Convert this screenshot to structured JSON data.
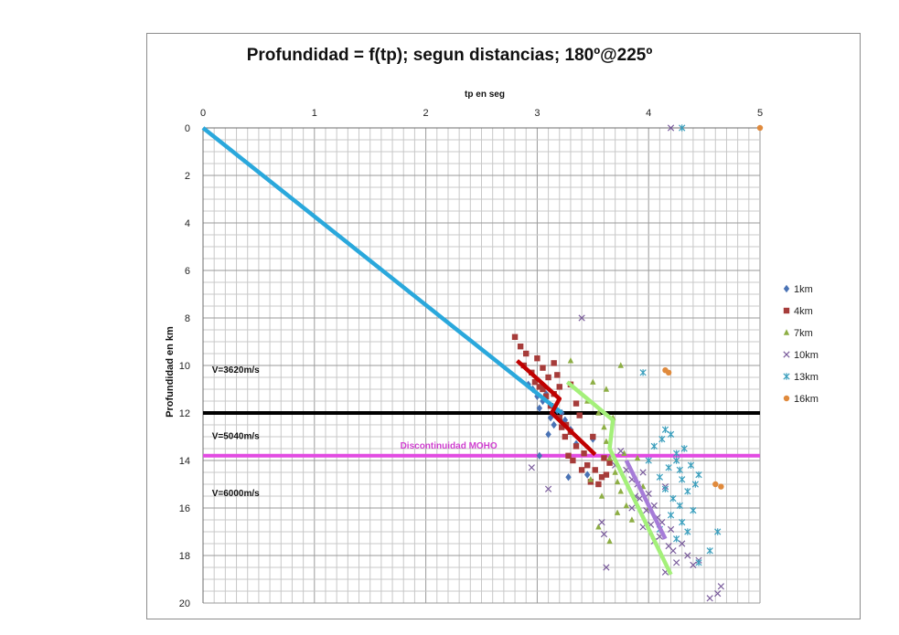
{
  "chart_data": {
    "type": "scatter",
    "title": "Profundidad  = f(tp); segun distancias; 180º@225º",
    "xlabel": "tp en seg",
    "ylabel": "Profundidad en km",
    "xlim": [
      0,
      5
    ],
    "ylim": [
      0,
      20
    ],
    "x_axis_position": "top",
    "y_reversed": true,
    "x_ticks": [
      0,
      1,
      2,
      3,
      4,
      5
    ],
    "y_ticks": [
      0,
      2,
      4,
      6,
      8,
      10,
      12,
      14,
      16,
      18,
      20
    ],
    "grid": true,
    "legend_position": "right",
    "series": [
      {
        "name": "1km",
        "marker": "diamond",
        "color": "#4a73b5",
        "points": [
          [
            2.92,
            10.8
          ],
          [
            2.96,
            11.0
          ],
          [
            3.0,
            11.3
          ],
          [
            3.02,
            11.8
          ],
          [
            3.05,
            11.5
          ],
          [
            3.08,
            11.2
          ],
          [
            3.1,
            12.9
          ],
          [
            3.12,
            12.2
          ],
          [
            3.15,
            12.5
          ],
          [
            3.18,
            11.9
          ],
          [
            3.22,
            12.0
          ],
          [
            3.3,
            12.7
          ],
          [
            3.35,
            13.3
          ],
          [
            3.02,
            13.8
          ],
          [
            3.28,
            14.7
          ],
          [
            3.45,
            14.6
          ],
          [
            3.5,
            13.1
          ],
          [
            3.25,
            12.3
          ]
        ]
      },
      {
        "name": "4km",
        "marker": "square",
        "color": "#a63c3a",
        "points": [
          [
            2.8,
            8.8
          ],
          [
            2.85,
            9.2
          ],
          [
            2.88,
            10.0
          ],
          [
            2.9,
            9.5
          ],
          [
            2.95,
            10.3
          ],
          [
            2.98,
            10.7
          ],
          [
            3.0,
            9.7
          ],
          [
            3.02,
            10.9
          ],
          [
            3.05,
            11.0
          ],
          [
            3.05,
            10.1
          ],
          [
            3.08,
            11.3
          ],
          [
            3.1,
            10.5
          ],
          [
            3.12,
            11.7
          ],
          [
            3.15,
            11.2
          ],
          [
            3.18,
            10.4
          ],
          [
            3.2,
            12.2
          ],
          [
            3.22,
            12.6
          ],
          [
            3.25,
            13.0
          ],
          [
            3.28,
            13.8
          ],
          [
            3.3,
            12.8
          ],
          [
            3.32,
            14.0
          ],
          [
            3.35,
            13.4
          ],
          [
            3.38,
            12.1
          ],
          [
            3.4,
            14.4
          ],
          [
            3.42,
            13.7
          ],
          [
            3.45,
            14.2
          ],
          [
            3.48,
            14.9
          ],
          [
            3.5,
            13.0
          ],
          [
            3.52,
            14.4
          ],
          [
            3.55,
            15.0
          ],
          [
            3.58,
            14.7
          ],
          [
            3.6,
            13.9
          ],
          [
            3.62,
            14.6
          ],
          [
            3.3,
            10.8
          ],
          [
            3.35,
            11.6
          ],
          [
            3.2,
            10.9
          ],
          [
            3.26,
            12.5
          ],
          [
            3.15,
            9.9
          ],
          [
            3.65,
            14.1
          ]
        ]
      },
      {
        "name": "7km",
        "marker": "triangle",
        "color": "#8dae44",
        "points": [
          [
            3.3,
            9.8
          ],
          [
            3.5,
            10.7
          ],
          [
            3.55,
            12.0
          ],
          [
            3.6,
            12.6
          ],
          [
            3.62,
            13.2
          ],
          [
            3.65,
            13.9
          ],
          [
            3.7,
            14.5
          ],
          [
            3.72,
            14.9
          ],
          [
            3.75,
            15.3
          ],
          [
            3.78,
            13.7
          ],
          [
            3.8,
            15.9
          ],
          [
            3.85,
            16.5
          ],
          [
            3.65,
            17.4
          ],
          [
            3.55,
            16.8
          ],
          [
            3.48,
            14.8
          ],
          [
            3.9,
            13.9
          ],
          [
            3.95,
            15.1
          ],
          [
            4.0,
            16.0
          ],
          [
            3.72,
            16.2
          ],
          [
            3.58,
            15.5
          ],
          [
            3.68,
            12.2
          ],
          [
            3.45,
            11.5
          ],
          [
            3.62,
            11.0
          ],
          [
            3.75,
            10.0
          ]
        ]
      },
      {
        "name": "10km",
        "marker": "x",
        "color": "#7a5c9c",
        "points": [
          [
            3.4,
            8.0
          ],
          [
            3.75,
            13.6
          ],
          [
            3.8,
            14.4
          ],
          [
            3.85,
            14.8
          ],
          [
            3.9,
            15.0
          ],
          [
            3.92,
            15.6
          ],
          [
            3.95,
            14.5
          ],
          [
            3.98,
            16.1
          ],
          [
            4.0,
            15.4
          ],
          [
            4.02,
            16.7
          ],
          [
            4.05,
            15.9
          ],
          [
            4.08,
            16.4
          ],
          [
            4.1,
            17.2
          ],
          [
            4.12,
            16.6
          ],
          [
            4.15,
            15.1
          ],
          [
            4.18,
            17.6
          ],
          [
            4.2,
            16.9
          ],
          [
            4.22,
            17.8
          ],
          [
            4.25,
            18.3
          ],
          [
            4.3,
            17.5
          ],
          [
            4.35,
            18.0
          ],
          [
            4.4,
            18.4
          ],
          [
            4.45,
            18.2
          ],
          [
            4.55,
            19.8
          ],
          [
            4.62,
            19.6
          ],
          [
            4.65,
            19.3
          ],
          [
            3.6,
            17.1
          ],
          [
            3.62,
            18.5
          ],
          [
            3.58,
            16.6
          ],
          [
            3.85,
            16.0
          ],
          [
            3.7,
            14.2
          ],
          [
            3.95,
            16.8
          ],
          [
            4.05,
            17.4
          ],
          [
            4.15,
            18.7
          ],
          [
            3.88,
            15.5
          ],
          [
            3.1,
            15.2
          ],
          [
            2.95,
            14.3
          ],
          [
            4.2,
            0.0
          ]
        ]
      },
      {
        "name": "13km",
        "marker": "star",
        "color": "#3b9fbd",
        "points": [
          [
            3.95,
            10.3
          ],
          [
            4.0,
            14.0
          ],
          [
            4.05,
            13.4
          ],
          [
            4.1,
            14.7
          ],
          [
            4.12,
            13.1
          ],
          [
            4.15,
            15.2
          ],
          [
            4.18,
            14.3
          ],
          [
            4.2,
            12.9
          ],
          [
            4.22,
            15.6
          ],
          [
            4.25,
            14.0
          ],
          [
            4.28,
            15.9
          ],
          [
            4.3,
            14.8
          ],
          [
            4.32,
            13.5
          ],
          [
            4.35,
            15.3
          ],
          [
            4.38,
            14.2
          ],
          [
            4.4,
            16.1
          ],
          [
            4.42,
            15.0
          ],
          [
            4.45,
            14.6
          ],
          [
            4.3,
            16.6
          ],
          [
            4.2,
            16.3
          ],
          [
            4.25,
            17.3
          ],
          [
            4.35,
            17.0
          ],
          [
            4.45,
            18.3
          ],
          [
            4.55,
            17.8
          ],
          [
            4.62,
            17.0
          ],
          [
            4.1,
            16.9
          ],
          [
            4.15,
            12.7
          ],
          [
            4.25,
            13.7
          ],
          [
            4.3,
            0.0
          ],
          [
            4.28,
            14.4
          ]
        ]
      },
      {
        "name": "16km",
        "marker": "circle",
        "color": "#e08a3c",
        "points": [
          [
            4.15,
            10.2
          ],
          [
            4.18,
            10.3
          ],
          [
            4.6,
            15.0
          ],
          [
            4.65,
            15.1
          ],
          [
            5.0,
            0.0
          ]
        ]
      }
    ],
    "fit_lines": [
      {
        "color": "#2aa8dc",
        "points": [
          [
            0,
            0
          ],
          [
            3.22,
            12.0
          ]
        ]
      },
      {
        "color": "#c00000",
        "points": [
          [
            2.82,
            9.8
          ],
          [
            3.2,
            11.4
          ],
          [
            3.13,
            12.0
          ],
          [
            3.52,
            13.75
          ]
        ]
      },
      {
        "color": "#a4f07a",
        "points": [
          [
            3.27,
            10.7
          ],
          [
            3.68,
            12.3
          ],
          [
            3.65,
            13.5
          ],
          [
            4.2,
            18.8
          ]
        ]
      },
      {
        "color": "#a67cd8",
        "points": [
          [
            3.8,
            14.0
          ],
          [
            4.15,
            17.3
          ]
        ]
      }
    ],
    "horizontal_lines": [
      {
        "y": 12.0,
        "color": "#000000"
      },
      {
        "y": 13.8,
        "color": "#e24be2"
      }
    ],
    "annotations": [
      {
        "text": "V=3620m/s",
        "x": 0.08,
        "y": 10.3,
        "color": "#111111"
      },
      {
        "text": "V=5040m/s",
        "x": 0.08,
        "y": 13.1,
        "color": "#111111"
      },
      {
        "text": "Discontinuidad  MOHO",
        "x": 1.77,
        "y": 13.5,
        "color": "#d040d0"
      },
      {
        "text": "V=6000m/s",
        "x": 0.08,
        "y": 15.5,
        "color": "#111111"
      }
    ]
  }
}
